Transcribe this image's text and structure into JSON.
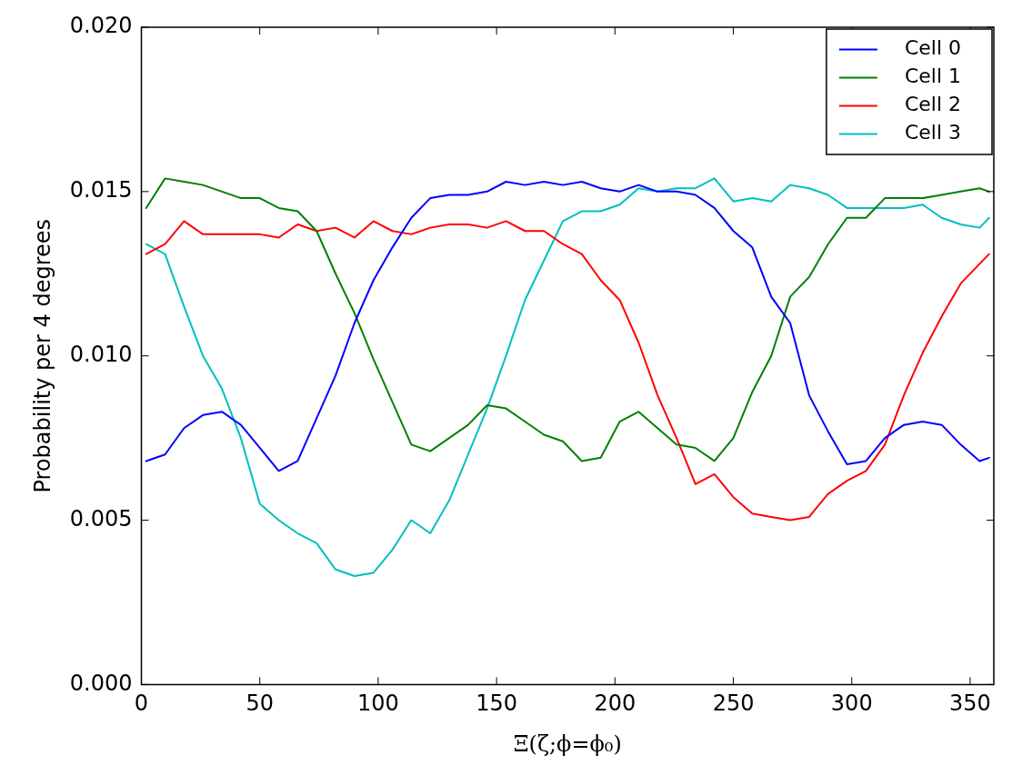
{
  "chart_data": {
    "type": "line",
    "xlabel": "Ξ(ζ;ϕ=ϕ₀)",
    "ylabel": "Probability per 4 degrees",
    "x": [
      2,
      10,
      18,
      26,
      34,
      42,
      50,
      58,
      66,
      74,
      82,
      90,
      98,
      106,
      114,
      122,
      130,
      138,
      146,
      154,
      162,
      170,
      178,
      186,
      194,
      202,
      210,
      218,
      226,
      234,
      242,
      250,
      258,
      266,
      274,
      282,
      290,
      298,
      306,
      314,
      322,
      330,
      338,
      346,
      354,
      358
    ],
    "series": [
      {
        "name": "Cell 0",
        "color": "#0000ff",
        "values": [
          0.0068,
          0.007,
          0.0078,
          0.0082,
          0.0083,
          0.0079,
          0.0072,
          0.0065,
          0.0068,
          0.0081,
          0.0094,
          0.011,
          0.0123,
          0.0133,
          0.0142,
          0.0148,
          0.0149,
          0.0149,
          0.015,
          0.0153,
          0.0152,
          0.0153,
          0.0152,
          0.0153,
          0.0151,
          0.015,
          0.0152,
          0.015,
          0.015,
          0.0149,
          0.0145,
          0.0138,
          0.0133,
          0.0118,
          0.011,
          0.0088,
          0.0077,
          0.0067,
          0.0068,
          0.0075,
          0.0079,
          0.008,
          0.0079,
          0.0073,
          0.0068,
          0.0069
        ]
      },
      {
        "name": "Cell 1",
        "color": "#008000",
        "values": [
          0.0145,
          0.0154,
          0.0153,
          0.0152,
          0.015,
          0.0148,
          0.0148,
          0.0145,
          0.0144,
          0.0138,
          0.0125,
          0.0113,
          0.0099,
          0.0086,
          0.0073,
          0.0071,
          0.0075,
          0.0079,
          0.0085,
          0.0084,
          0.008,
          0.0076,
          0.0074,
          0.0068,
          0.0069,
          0.008,
          0.0083,
          0.0078,
          0.0073,
          0.0072,
          0.0068,
          0.0075,
          0.0089,
          0.01,
          0.0118,
          0.0124,
          0.0134,
          0.0142,
          0.0142,
          0.0148,
          0.0148,
          0.0148,
          0.0149,
          0.015,
          0.0151,
          0.015
        ]
      },
      {
        "name": "Cell 2",
        "color": "#ff0000",
        "values": [
          0.0131,
          0.0134,
          0.0141,
          0.0137,
          0.0137,
          0.0137,
          0.0137,
          0.0136,
          0.014,
          0.0138,
          0.0139,
          0.0136,
          0.0141,
          0.0138,
          0.0137,
          0.0139,
          0.014,
          0.014,
          0.0139,
          0.0141,
          0.0138,
          0.0138,
          0.0134,
          0.0131,
          0.0123,
          0.0117,
          0.0104,
          0.0088,
          0.0075,
          0.0061,
          0.0064,
          0.0057,
          0.0052,
          0.0051,
          0.005,
          0.0051,
          0.0058,
          0.0062,
          0.0065,
          0.0073,
          0.0088,
          0.0101,
          0.0112,
          0.0122,
          0.0128,
          0.0131
        ]
      },
      {
        "name": "Cell 3",
        "color": "#00bfbf",
        "values": [
          0.0134,
          0.0131,
          0.0115,
          0.01,
          0.009,
          0.0075,
          0.0055,
          0.005,
          0.0046,
          0.0043,
          0.0035,
          0.0033,
          0.0034,
          0.0041,
          0.005,
          0.0046,
          0.0056,
          0.007,
          0.0084,
          0.01,
          0.0117,
          0.0129,
          0.0141,
          0.0144,
          0.0144,
          0.0146,
          0.0151,
          0.015,
          0.0151,
          0.0151,
          0.0154,
          0.0147,
          0.0148,
          0.0147,
          0.0152,
          0.0151,
          0.0149,
          0.0145,
          0.0145,
          0.0145,
          0.0145,
          0.0146,
          0.0142,
          0.014,
          0.0139,
          0.0142
        ]
      }
    ],
    "xlim": [
      0,
      360
    ],
    "xticks": [
      0,
      50,
      100,
      150,
      200,
      250,
      300,
      350
    ],
    "ylim": [
      0,
      0.02
    ],
    "yticks": [
      {
        "value": 0,
        "label": "0.000"
      },
      {
        "value": 0.005,
        "label": "0.005"
      },
      {
        "value": 0.01,
        "label": "0.010"
      },
      {
        "value": 0.015,
        "label": "0.015"
      },
      {
        "value": 0.02,
        "label": "0.020"
      }
    ],
    "legend": "top right",
    "marker": "none",
    "line_style": "solid"
  }
}
